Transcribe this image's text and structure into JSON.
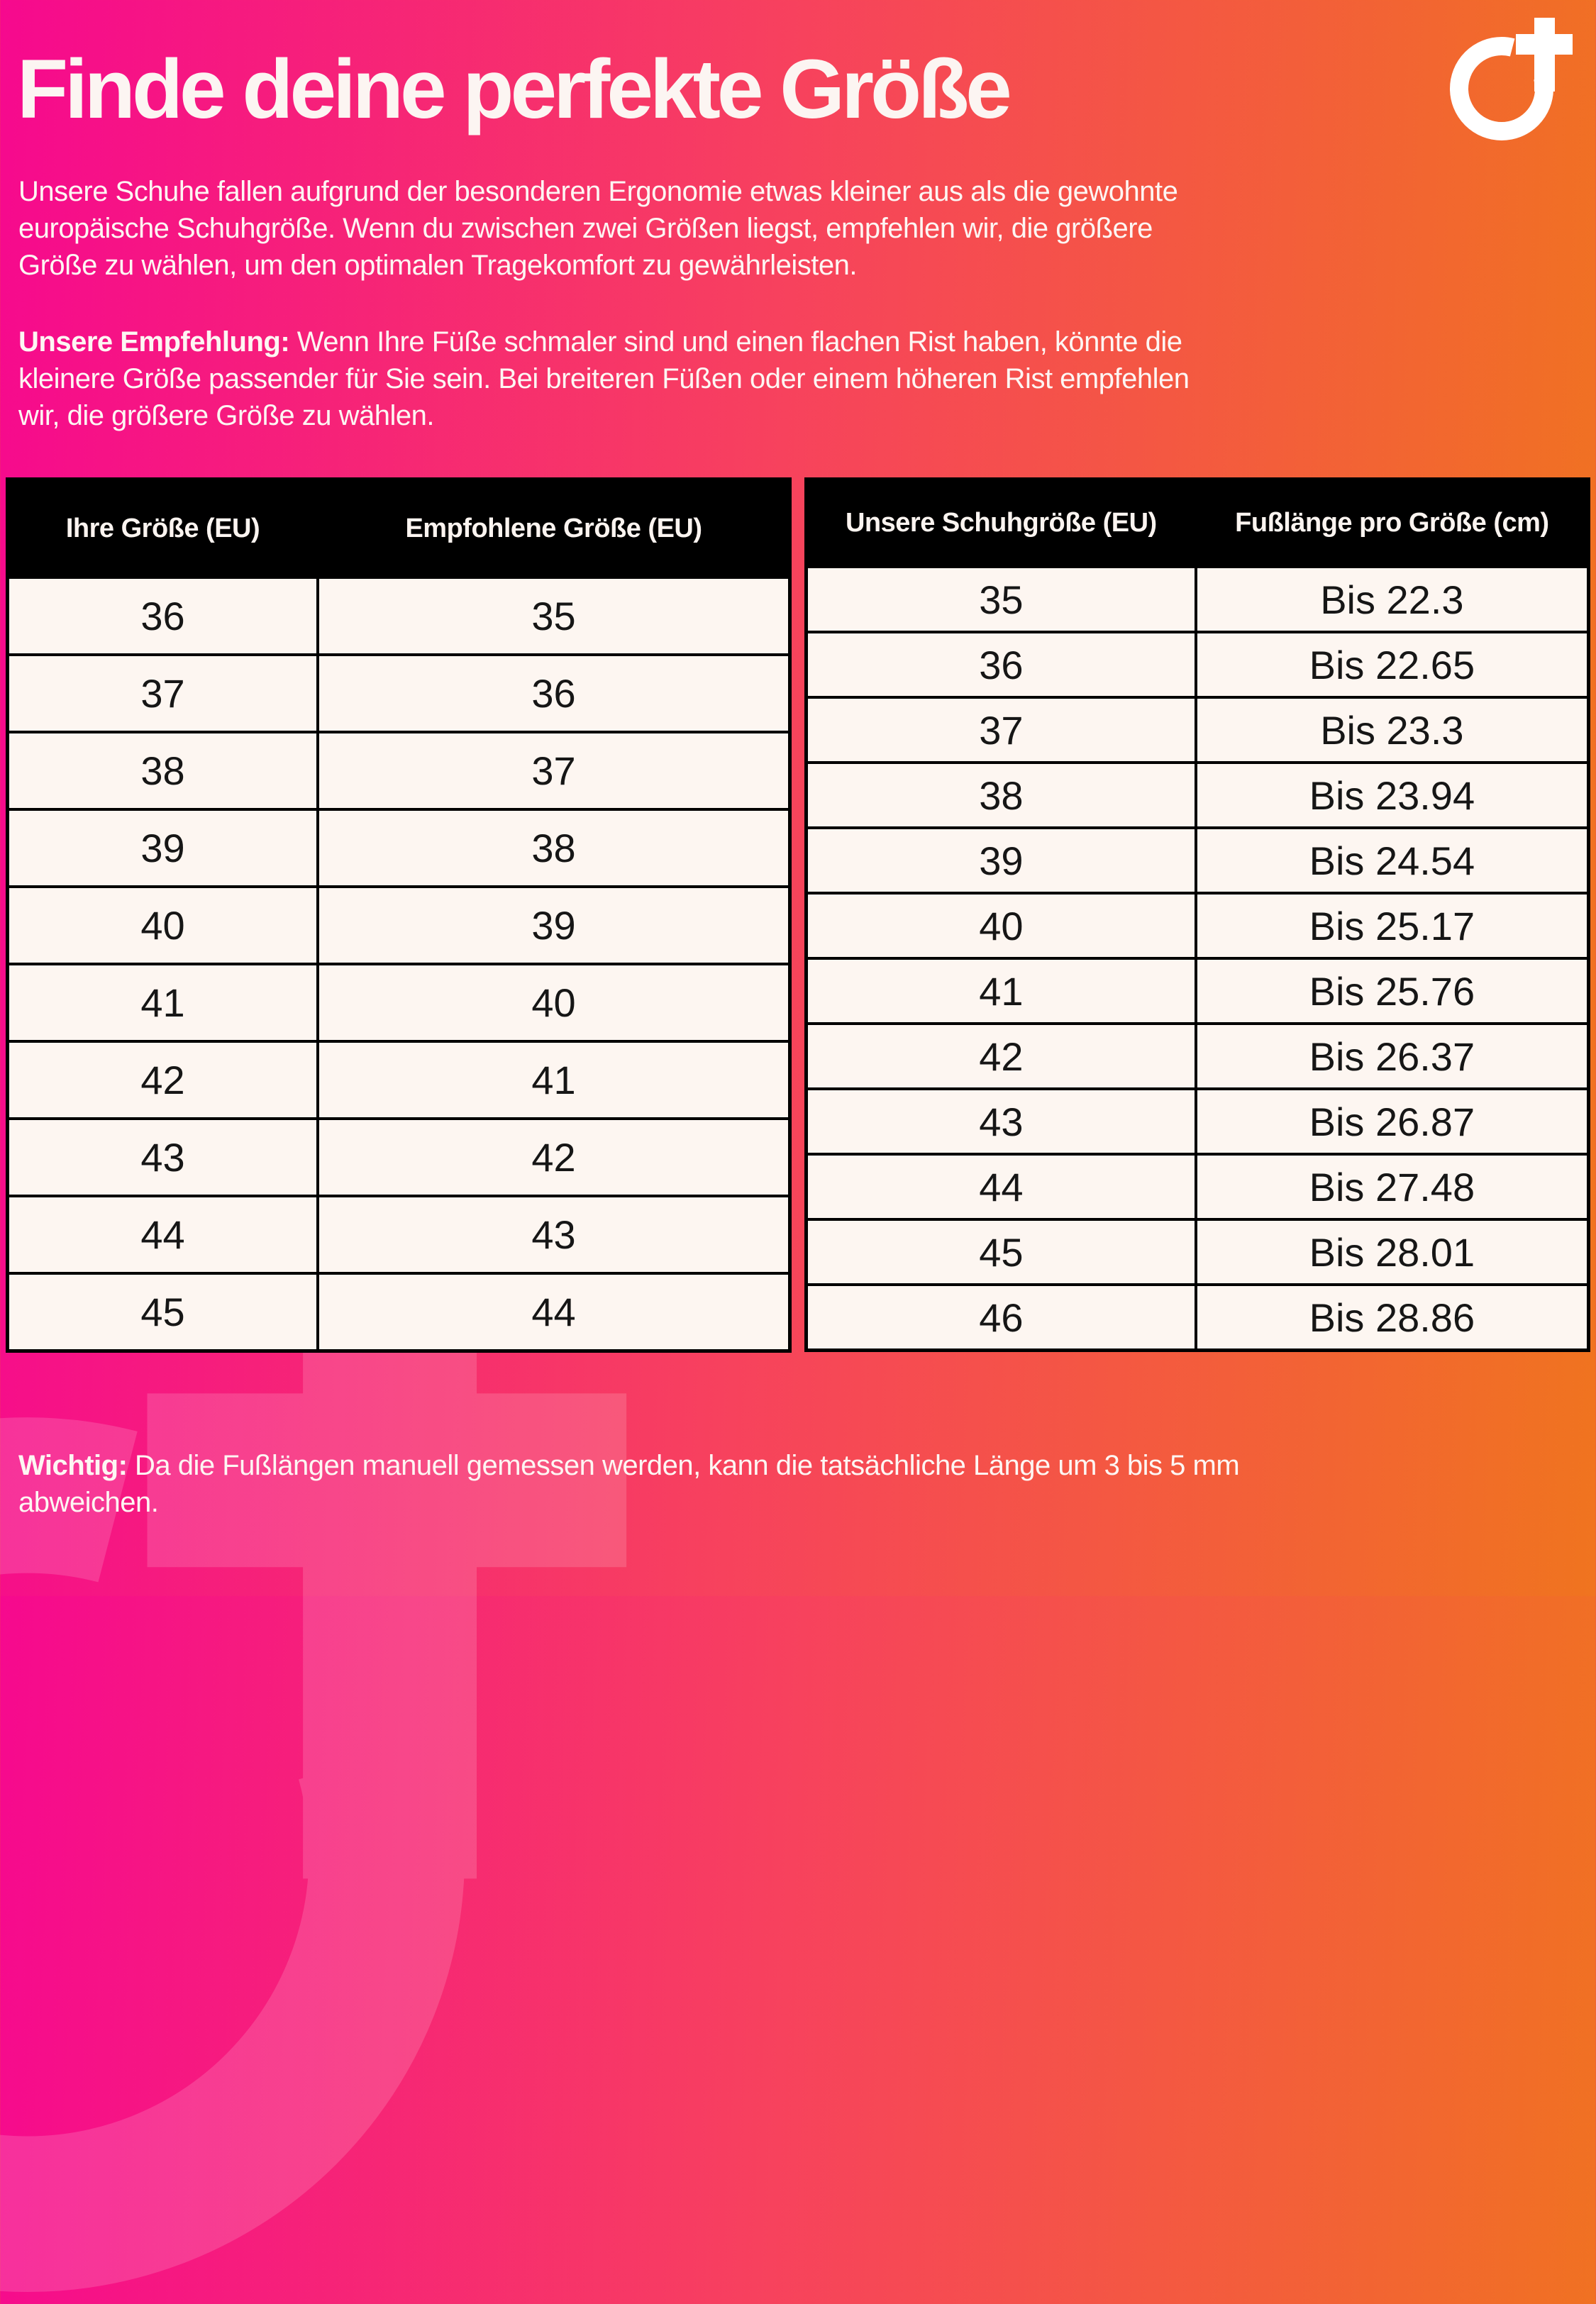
{
  "header": {
    "title": "Finde deine perfekte Größe"
  },
  "intro": {
    "text": "Unsere Schuhe fallen aufgrund der besonderen Ergonomie etwas kleiner aus als die gewohnte\neuropäische Schuhgröße. Wenn du zwischen zwei Größen liegst, empfehlen wir, die größere\nGröße zu wählen, um den optimalen Tragekomfort zu gewährleisten."
  },
  "recommendation": {
    "label": "Unsere Empfehlung: ",
    "text": "Wenn Ihre Füße schmaler sind und einen flachen Rist haben, könnte die\nkleinere Größe passender für Sie sein. Bei breiteren Füßen oder einem höheren Rist empfehlen\nwir, die größere Größe zu wählen."
  },
  "size_conversion_table": {
    "headers": [
      "Ihre Größe (EU)",
      "Empfohlene Größe (EU)"
    ],
    "rows": [
      [
        "36",
        "35"
      ],
      [
        "37",
        "36"
      ],
      [
        "38",
        "37"
      ],
      [
        "39",
        "38"
      ],
      [
        "40",
        "39"
      ],
      [
        "41",
        "40"
      ],
      [
        "42",
        "41"
      ],
      [
        "43",
        "42"
      ],
      [
        "44",
        "43"
      ],
      [
        "45",
        "44"
      ]
    ]
  },
  "foot_length_table": {
    "headers": [
      "Unsere Schuhgröße (EU)",
      "Fußlänge pro Größe (cm)"
    ],
    "rows": [
      [
        "35",
        "Bis 22.3"
      ],
      [
        "36",
        "Bis 22.65"
      ],
      [
        "37",
        "Bis 23.3"
      ],
      [
        "38",
        "Bis 23.94"
      ],
      [
        "39",
        "Bis 24.54"
      ],
      [
        "40",
        "Bis 25.17"
      ],
      [
        "41",
        "Bis 25.76"
      ],
      [
        "42",
        "Bis 26.37"
      ],
      [
        "43",
        "Bis 26.87"
      ],
      [
        "44",
        "Bis 27.48"
      ],
      [
        "45",
        "Bis 28.01"
      ],
      [
        "46",
        "Bis 28.86"
      ]
    ]
  },
  "note": {
    "label": "Wichtig: ",
    "text": "Da die Fußlängen manuell gemessen werden, kann die tatsächliche Länge um 3 bis 5 mm\nabweichen."
  },
  "colors": {
    "gradient_left": "#f6098e",
    "gradient_mid": "#f7425d",
    "gradient_right": "#f0741f",
    "table_header_bg": "#000000",
    "table_cell_bg": "#fdf6f1",
    "table_border": "#000000",
    "text_light": "#fcf5f1",
    "text_dark": "#161616"
  },
  "logo": {
    "icon": "o-plus-ring-icon"
  }
}
